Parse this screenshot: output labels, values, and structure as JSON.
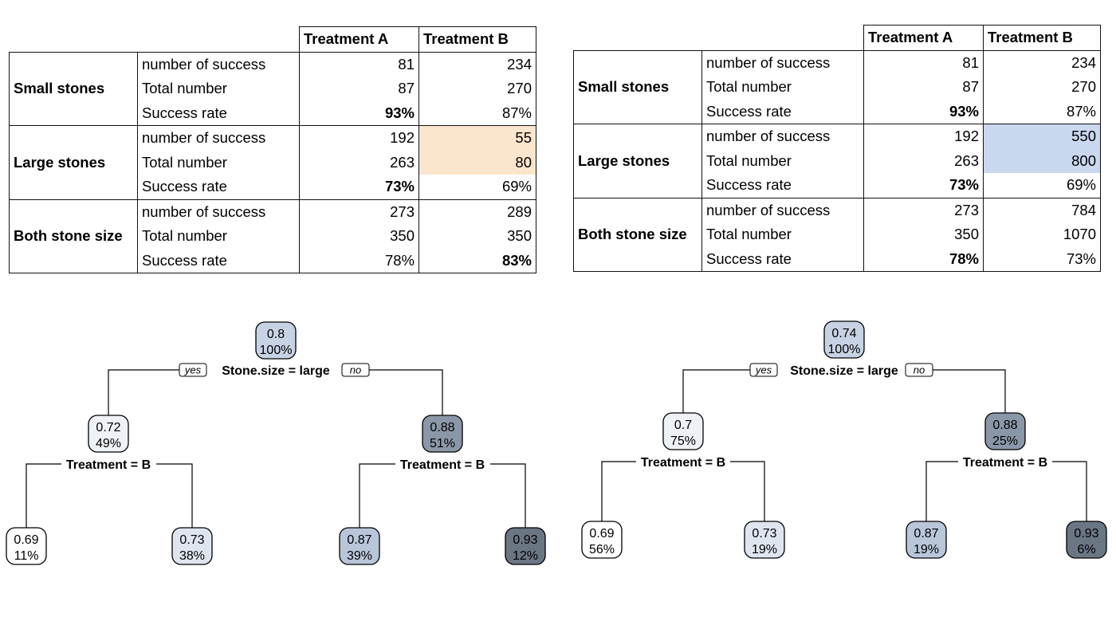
{
  "tables": {
    "left": {
      "header": [
        "Treatment A",
        "Treatment B"
      ],
      "groups": [
        {
          "name": "Small stones",
          "rows": [
            {
              "metric": "number of success",
              "a": "81",
              "b": "234"
            },
            {
              "metric": "Total number",
              "a": "87",
              "b": "270"
            },
            {
              "metric": "Success rate",
              "a": "93%",
              "b": "87%"
            }
          ]
        },
        {
          "name": "Large stones",
          "rows": [
            {
              "metric": "number of success",
              "a": "192",
              "b": "55"
            },
            {
              "metric": "Total number",
              "a": "263",
              "b": "80"
            },
            {
              "metric": "Success rate",
              "a": "73%",
              "b": "69%"
            }
          ]
        },
        {
          "name": "Both stone size",
          "rows": [
            {
              "metric": "number of success",
              "a": "273",
              "b": "289"
            },
            {
              "metric": "Total number",
              "a": "350",
              "b": "350"
            },
            {
              "metric": "Success rate",
              "a": "78%",
              "b": "83%"
            }
          ]
        }
      ],
      "highlight_color": "#fbe5cd"
    },
    "right": {
      "header": [
        "Treatment A",
        "Treatment B"
      ],
      "groups": [
        {
          "name": "Small stones",
          "rows": [
            {
              "metric": "number of success",
              "a": "81",
              "b": "234"
            },
            {
              "metric": "Total number",
              "a": "87",
              "b": "270"
            },
            {
              "metric": "Success rate",
              "a": "93%",
              "b": "87%"
            }
          ]
        },
        {
          "name": "Large stones",
          "rows": [
            {
              "metric": "number of success",
              "a": "192",
              "b": "550"
            },
            {
              "metric": "Total number",
              "a": "263",
              "b": "800"
            },
            {
              "metric": "Success rate",
              "a": "73%",
              "b": "69%"
            }
          ]
        },
        {
          "name": "Both stone size",
          "rows": [
            {
              "metric": "number of success",
              "a": "273",
              "b": "784"
            },
            {
              "metric": "Total number",
              "a": "350",
              "b": "1070"
            },
            {
              "metric": "Success rate",
              "a": "78%",
              "b": "73%"
            }
          ]
        }
      ],
      "highlight_color": "#c9d8ef"
    }
  },
  "trees": {
    "left": {
      "root": {
        "value": "0.8",
        "pct": "100%"
      },
      "root_split": "Stone.size = large",
      "yes_tag": "yes",
      "no_tag": "no",
      "left_node": {
        "value": "0.72",
        "pct": "49%"
      },
      "right_node": {
        "value": "0.88",
        "pct": "51%"
      },
      "left_split": "Treatment = B",
      "right_split": "Treatment = B",
      "leaves": [
        {
          "value": "0.69",
          "pct": "11%"
        },
        {
          "value": "0.73",
          "pct": "38%"
        },
        {
          "value": "0.87",
          "pct": "39%"
        },
        {
          "value": "0.93",
          "pct": "12%"
        }
      ]
    },
    "right": {
      "root": {
        "value": "0.74",
        "pct": "100%"
      },
      "root_split": "Stone.size = large",
      "yes_tag": "yes",
      "no_tag": "no",
      "left_node": {
        "value": "0.7",
        "pct": "75%"
      },
      "right_node": {
        "value": "0.88",
        "pct": "25%"
      },
      "left_split": "Treatment = B",
      "right_split": "Treatment = B",
      "leaves": [
        {
          "value": "0.69",
          "pct": "56%"
        },
        {
          "value": "0.73",
          "pct": "19%"
        },
        {
          "value": "0.87",
          "pct": "19%"
        },
        {
          "value": "0.93",
          "pct": "6%"
        }
      ]
    }
  },
  "node_colors": {
    "0.69": "#ffffff",
    "0.7": "#eef1f6",
    "0.72": "#eef1f6",
    "0.73": "#dfe5ef",
    "0.74": "#c7d3e4",
    "0.8": "#c7d3e4",
    "0.87": "#b9c6da",
    "0.88": "#8a97a8",
    "0.93": "#6b7685"
  }
}
